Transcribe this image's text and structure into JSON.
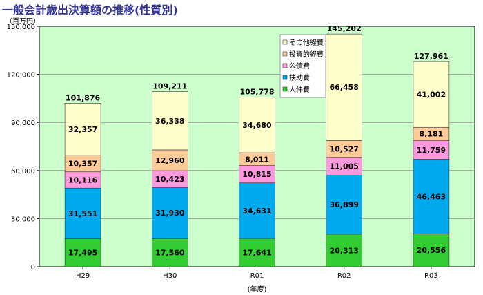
{
  "header": {
    "title": "一般会計歳出決算額の推移(性質別)",
    "unit": "（百万円）"
  },
  "chart_data": {
    "type": "bar",
    "stacked": true,
    "title": "一般会計歳出決算額の推移(性質別)",
    "xlabel": "(年度)",
    "ylabel": "（百万円）",
    "ylim": [
      0,
      150000
    ],
    "yticks": [
      0,
      30000,
      60000,
      90000,
      120000,
      150000
    ],
    "ytick_labels": [
      "0",
      "30,000",
      "60,000",
      "90,000",
      "120,000",
      "150,000"
    ],
    "grid": true,
    "legend_position": "top-right",
    "categories": [
      "H29",
      "H30",
      "R01",
      "R02",
      "R03"
    ],
    "series": [
      {
        "name": "人件費",
        "color": "#33cc33",
        "values": [
          17495,
          17560,
          17641,
          20313,
          20556
        ],
        "labels": [
          "17,495",
          "17,560",
          "17,641",
          "20,313",
          "20,556"
        ]
      },
      {
        "name": "扶助費",
        "color": "#00aaee",
        "values": [
          31551,
          31930,
          34631,
          36899,
          46463
        ],
        "labels": [
          "31,551",
          "31,930",
          "34,631",
          "36,899",
          "46,463"
        ]
      },
      {
        "name": "公債費",
        "color": "#ff99dd",
        "values": [
          10116,
          10423,
          10815,
          11005,
          11759
        ],
        "labels": [
          "10,116",
          "10,423",
          "10,815",
          "11,005",
          "11,759"
        ]
      },
      {
        "name": "投資的経費",
        "color": "#ffcc99",
        "values": [
          10357,
          12960,
          8011,
          10527,
          8181
        ],
        "labels": [
          "10,357",
          "12,960",
          "8,011",
          "10,527",
          "8,181"
        ]
      },
      {
        "name": "その他経費",
        "color": "#ffffcc",
        "values": [
          32357,
          36338,
          34680,
          66458,
          41002
        ],
        "labels": [
          "32,357",
          "36,338",
          "34,680",
          "66,458",
          "41,002"
        ]
      }
    ],
    "totals": [
      101876,
      109211,
      105778,
      145202,
      127961
    ],
    "total_labels": [
      "101,876",
      "109,211",
      "105,778",
      "145,202",
      "127,961"
    ],
    "legend_order": [
      "その他経費",
      "投資的経費",
      "公債費",
      "扶助費",
      "人件費"
    ],
    "plot_background": "#ccffcc",
    "grid_color": "#999999"
  }
}
